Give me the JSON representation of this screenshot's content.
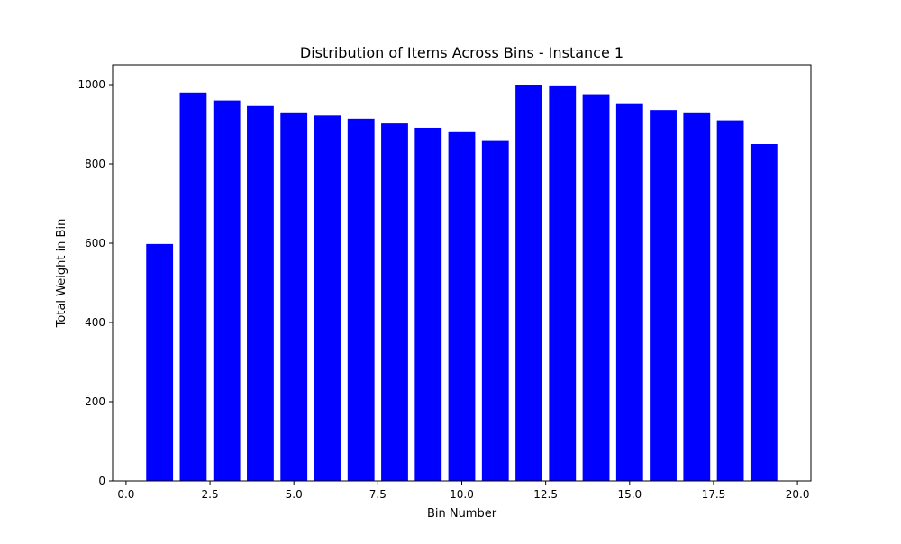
{
  "chart_data": {
    "type": "bar",
    "title": "Distribution of Items Across Bins - Instance 1",
    "xlabel": "Bin Number",
    "ylabel": "Total Weight in Bin",
    "x": [
      1,
      2,
      3,
      4,
      5,
      6,
      7,
      8,
      9,
      10,
      11,
      12,
      13,
      14,
      15,
      16,
      17,
      18,
      19
    ],
    "values": [
      598,
      980,
      960,
      946,
      930,
      922,
      914,
      902,
      891,
      880,
      860,
      1000,
      998,
      976,
      953,
      936,
      930,
      910,
      850
    ],
    "bar_width": 0.8,
    "xlim": [
      -0.4,
      20.4
    ],
    "ylim": [
      0,
      1050
    ],
    "xticks": [
      "0.0",
      "2.5",
      "5.0",
      "7.5",
      "10.0",
      "12.5",
      "15.0",
      "17.5",
      "20.0"
    ],
    "xtick_values": [
      0,
      2.5,
      5,
      7.5,
      10,
      12.5,
      15,
      17.5,
      20
    ],
    "yticks": [
      "0",
      "200",
      "400",
      "600",
      "800",
      "1000"
    ],
    "ytick_values": [
      0,
      200,
      400,
      600,
      800,
      1000
    ],
    "grid": false,
    "bar_color": "#0000ff"
  }
}
